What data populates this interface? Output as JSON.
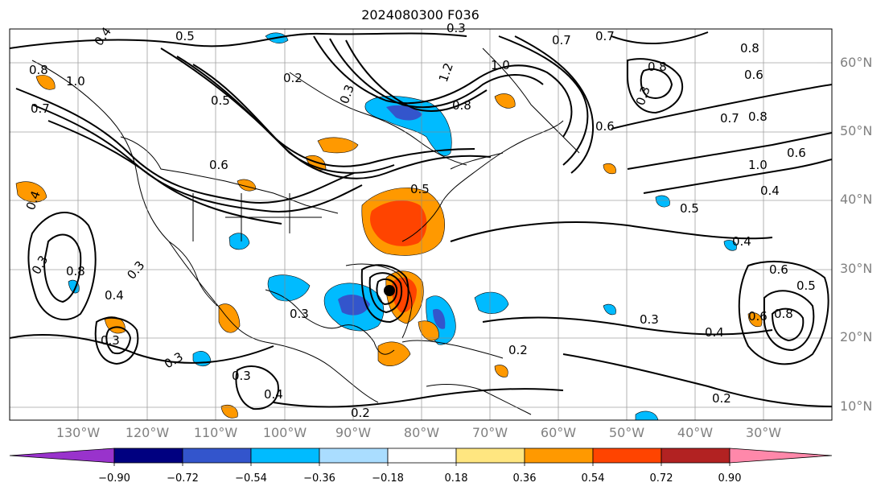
{
  "title": "2024080300 F036",
  "map": {
    "lat_labels": [
      "60°N",
      "50°N",
      "40°N",
      "30°N",
      "20°N",
      "10°N"
    ],
    "lon_labels": [
      "130°W",
      "120°W",
      "110°W",
      "100°W",
      "90°W",
      "80°W",
      "70°W",
      "60°W",
      "50°W",
      "40°W",
      "30°W"
    ],
    "contour_labels": [
      "0.5",
      "0.4",
      "0.8",
      "1.0",
      "0.7",
      "0.2",
      "0.3",
      "0.5",
      "0.6",
      "0.7",
      "0.3",
      "1.2",
      "1.0",
      "0.8",
      "0.6",
      "0.5",
      "0.7",
      "0.8",
      "0.6",
      "0.3",
      "0.8",
      "0.8",
      "0.7",
      "1.0",
      "0.6",
      "0.4",
      "0.5",
      "0.4",
      "0.6",
      "0.5",
      "0.8",
      "0.6",
      "0.4",
      "0.3",
      "0.3",
      "0.4",
      "0.8",
      "0.3",
      "0.3",
      "0.4",
      "0.3",
      "0.2",
      "0.2",
      "0.3",
      "0.4",
      "0.2",
      "0.3"
    ]
  },
  "colorbar": {
    "tick_labels": [
      "−0.90",
      "−0.72",
      "−0.54",
      "−0.36",
      "−0.18",
      "0.18",
      "0.36",
      "0.54",
      "0.72",
      "0.90"
    ],
    "colors": [
      "#9933cc",
      "#000080",
      "#3355cc",
      "#00bbff",
      "#aaddff",
      "#ffffff",
      "#ffe680",
      "#ff9900",
      "#ff4400",
      "#b22222",
      "#ff88aa"
    ]
  }
}
